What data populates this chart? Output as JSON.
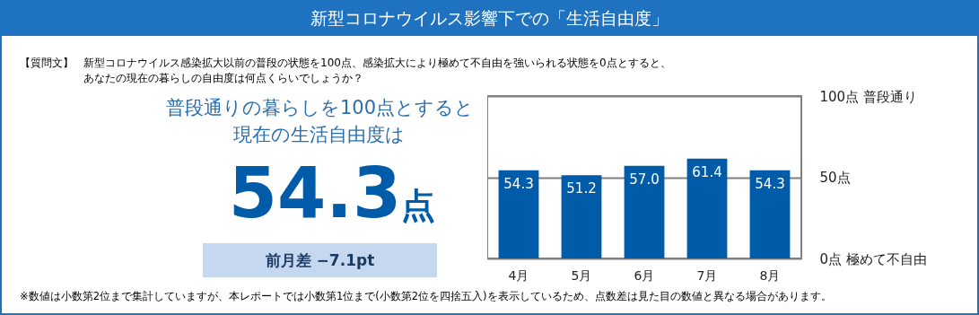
{
  "chart_data": {
    "type": "bar",
    "title": "新型コロナウイルス影響下での「生活自由度」",
    "categories": [
      "4月",
      "5月",
      "6月",
      "7月",
      "8月"
    ],
    "values": [
      54.3,
      51.2,
      57.0,
      61.4,
      54.3
    ],
    "value_labels": [
      "54.3",
      "51.2",
      "57.0",
      "61.4",
      "54.3"
    ],
    "color": "#005ca8",
    "ylim": [
      0,
      100
    ],
    "yticks": [
      {
        "value": 0,
        "label": "0点 極めて不自由"
      },
      {
        "value": 50,
        "label": "50点"
      },
      {
        "value": 100,
        "label": "100点 普段通り"
      }
    ],
    "grid": "y",
    "annotations": [
      "【質問文】",
      "新型コロナウイルス感染拡大以前の普段の状態を100点、感染拡大により極めて不自由を強いられる状態を0点とすると、",
      "あなたの現在の暮らしの自由度は何点くらいでしょうか？",
      "普段通りの暮らしを100点とすると",
      "現在の生活自由度は",
      "54.3",
      "点",
      "前月差 −7.1pt",
      "※数値は小数第2位まで集計していますが、本レポートでは小数第1位まで(小数第2位を四捨五入)を表示しているため、点数差は見た目の数値と異なる場合があります。"
    ]
  }
}
